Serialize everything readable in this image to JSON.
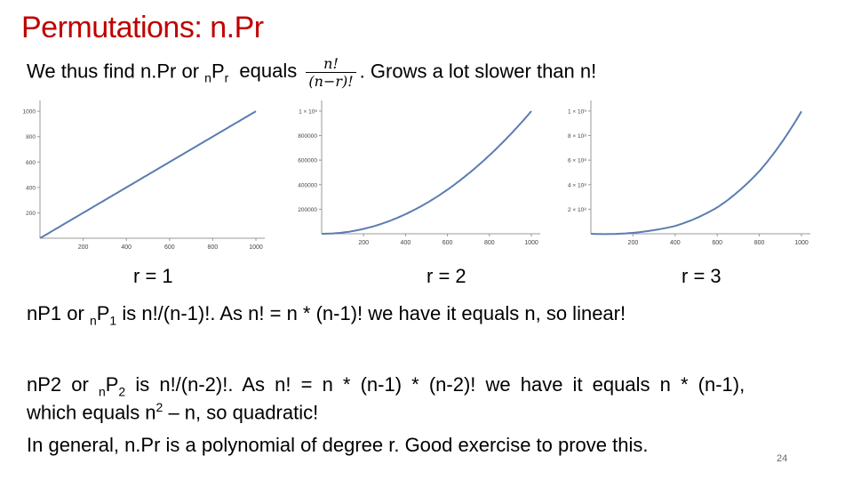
{
  "title": "Permutations: n.Pr",
  "line1": {
    "prefix": "We thus find n.Pr or ",
    "sub_n": "n",
    "P": "P",
    "sub_r": "r",
    "equals": "equals",
    "frac_num": "n!",
    "frac_den": "(n−r)!",
    "suffix": ". Grows a lot slower than n!"
  },
  "labels": {
    "r1": "r = 1",
    "r2": "r = 2",
    "r3": "r = 3"
  },
  "line_p1": {
    "a": "nP1 or ",
    "sub_n": "n",
    "P": "P",
    "sub_1": "1",
    "b": " is n!/(n-1)!. As n! = n * (n-1)! we have it equals n, so linear!"
  },
  "line_p2": {
    "a": "nP2 or ",
    "sub_n": "n",
    "P": "P",
    "sub_2": "2",
    "b": " is n!/(n-2)!. As n! = n * (n-1) * (n-2)! we have it equals n * (n-1),",
    "c": "which equals n",
    "sup_2": "2",
    "d": " – n, so quadratic!"
  },
  "line_general": "In general, n.Pr is a polynomial of degree r. Good exercise to prove this.",
  "page_number": "24",
  "chart_data": [
    {
      "type": "line",
      "x": [
        1,
        200,
        400,
        600,
        800,
        1000
      ],
      "y": [
        1,
        200,
        400,
        600,
        800,
        1000
      ],
      "xticks": [
        "200",
        "400",
        "600",
        "800",
        "1000"
      ],
      "yticks": [
        "200",
        "400",
        "600",
        "800",
        "1000"
      ],
      "xlim": [
        0,
        1000
      ],
      "ylim": [
        0,
        1050
      ],
      "color": "#5b7db1"
    },
    {
      "type": "line",
      "x": [
        1,
        200,
        400,
        600,
        800,
        1000
      ],
      "y": [
        0,
        39800,
        159600,
        359400,
        639200,
        999000
      ],
      "xticks": [
        "200",
        "400",
        "600",
        "800",
        "1000"
      ],
      "yticks": [
        "200000",
        "400000",
        "600000",
        "800000",
        "1 × 10⁶"
      ],
      "xlim": [
        0,
        1000
      ],
      "ylim": [
        0,
        1050000
      ],
      "color": "#5b7db1"
    },
    {
      "type": "line",
      "x": [
        1,
        200,
        400,
        600,
        800,
        1000
      ],
      "y": [
        0,
        7880400,
        63520800,
        214921200,
        510081600,
        997002000
      ],
      "xticks": [
        "200",
        "400",
        "600",
        "800",
        "1000"
      ],
      "yticks": [
        "2 × 10⁸",
        "4 × 10⁸",
        "6 × 10⁸",
        "8 × 10⁸",
        "1 × 10⁹"
      ],
      "xlim": [
        0,
        1000
      ],
      "ylim": [
        0,
        1050000000
      ],
      "color": "#5b7db1"
    }
  ]
}
